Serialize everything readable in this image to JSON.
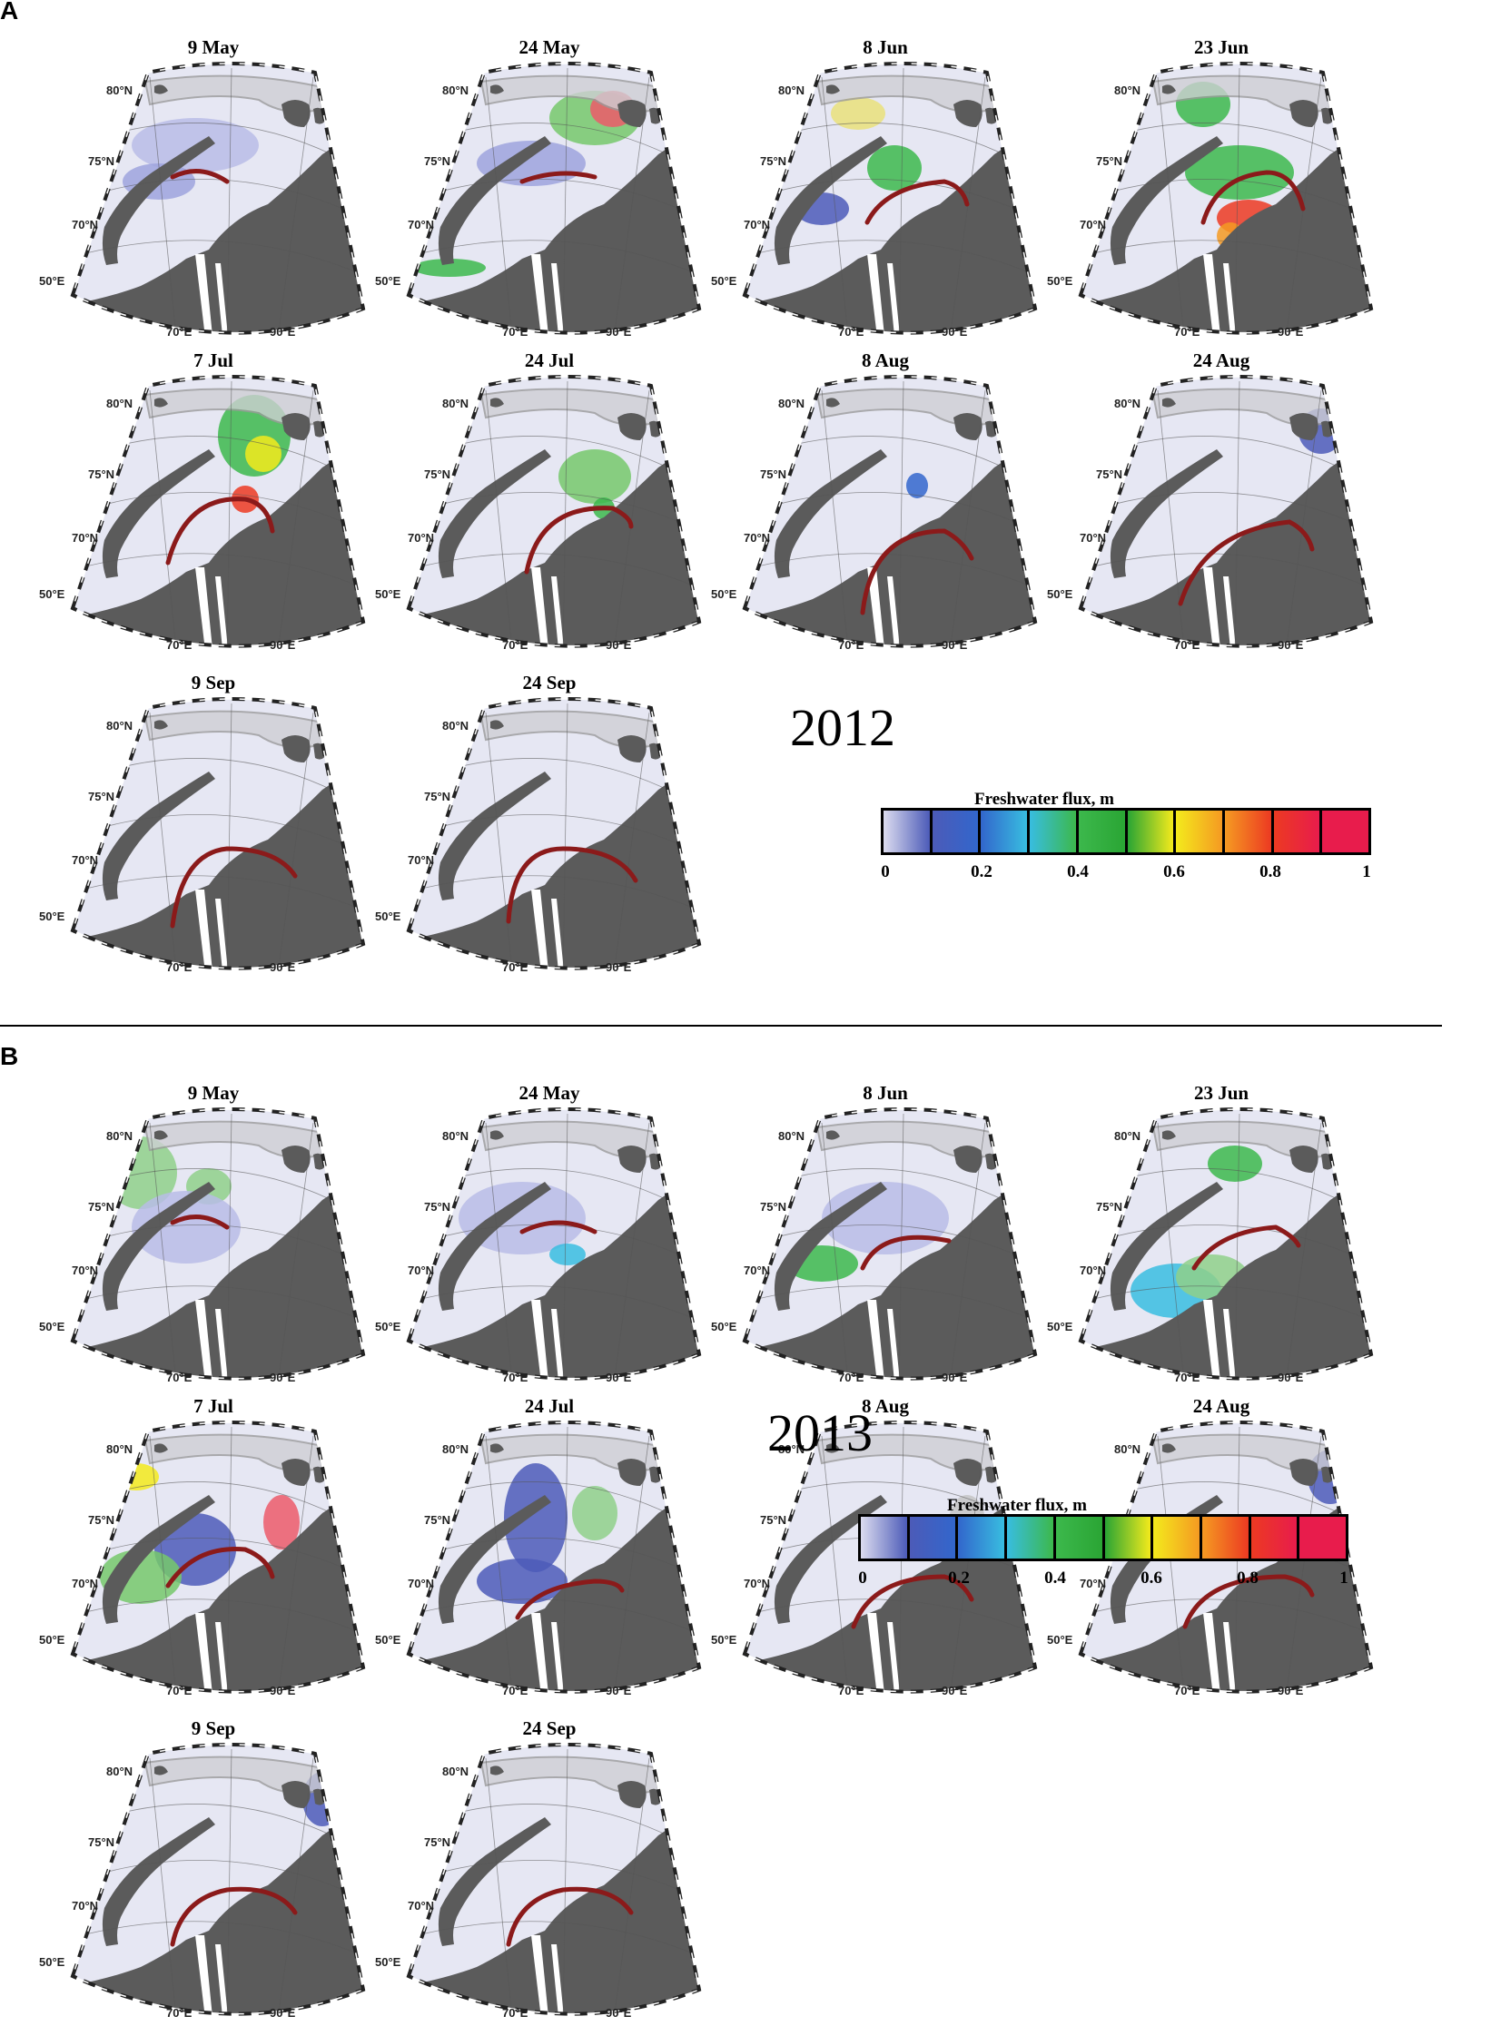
{
  "panels": [
    {
      "letter": "A",
      "year": "2012",
      "colorbar": {
        "title": "Freshwater flux, m",
        "ticks": [
          "0",
          "0.2",
          "0.4",
          "0.6",
          "0.8",
          "1"
        ]
      },
      "maps": [
        {
          "title": "9 May"
        },
        {
          "title": "24 May"
        },
        {
          "title": "8 Jun"
        },
        {
          "title": "23 Jun"
        },
        {
          "title": "7 Jul"
        },
        {
          "title": "24 Jul"
        },
        {
          "title": "8 Aug"
        },
        {
          "title": "24 Aug"
        },
        {
          "title": "9 Sep"
        },
        {
          "title": "24 Sep"
        }
      ]
    },
    {
      "letter": "B",
      "year": "2013",
      "colorbar": {
        "title": "Freshwater flux, m",
        "ticks": [
          "0",
          "0.2",
          "0.4",
          "0.6",
          "0.8",
          "1"
        ]
      },
      "maps": [
        {
          "title": "9 May"
        },
        {
          "title": "24 May"
        },
        {
          "title": "8 Jun"
        },
        {
          "title": "23 Jun"
        },
        {
          "title": "7 Jul"
        },
        {
          "title": "24 Jul"
        },
        {
          "title": "8 Aug"
        },
        {
          "title": "24 Aug"
        },
        {
          "title": "9 Sep"
        },
        {
          "title": "24 Sep"
        }
      ]
    }
  ],
  "axis_labels": {
    "lat80": "80°N",
    "lat75": "75°N",
    "lat70": "70°N",
    "lon50": "50°E",
    "lon70": "70°E",
    "lon90": "90°E"
  },
  "colors": {
    "land": "#5b5b5b",
    "sea": "#e6e7f3",
    "ice_outline": "#9a9a9a",
    "river_front": "#8b1a1a",
    "colorbar": [
      "#dcdcef",
      "#4c5bb8",
      "#3266cc",
      "#38bde0",
      "#3cb84c",
      "#2aa534",
      "#f3ea1c",
      "#f59a22",
      "#ec3a22",
      "#e81c4c"
    ]
  },
  "map_icons": [
    "polar-stereographic-map"
  ]
}
